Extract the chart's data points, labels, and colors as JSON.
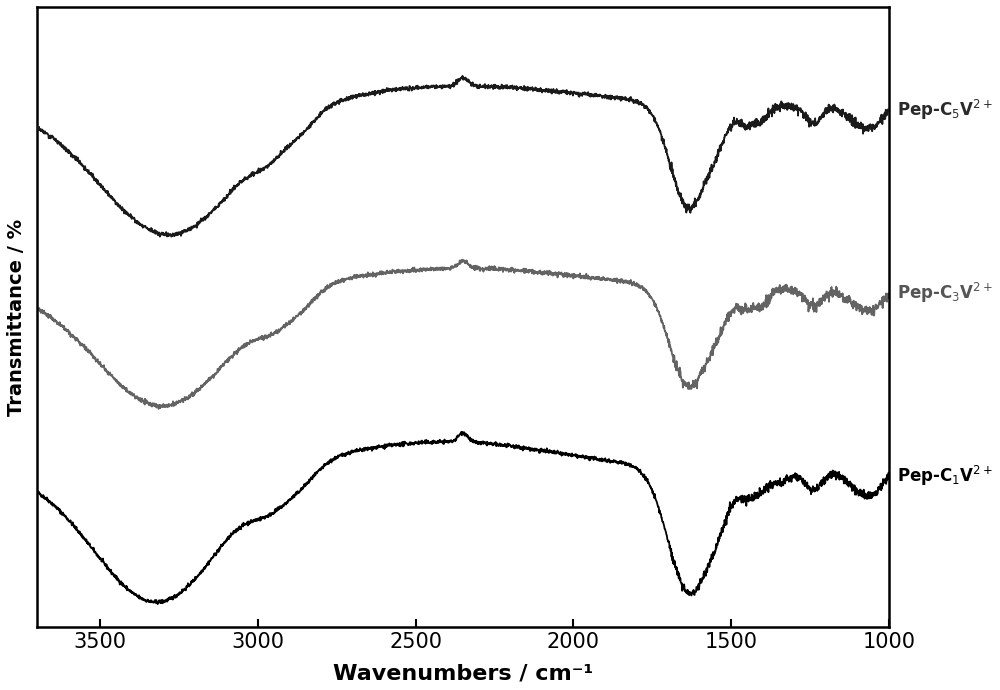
{
  "xlabel": "Wavenumbers / cm⁻¹",
  "ylabel": "Transmittance / %",
  "xmin": 1000,
  "xmax": 3700,
  "colors": {
    "pep_c5": "#1a1a1a",
    "pep_c3": "#636363",
    "pep_c1": "#000000"
  },
  "labels": {
    "pep_c5": "Pep-C$_5$V$^{2+}$",
    "pep_c3": "Pep-C$_3$V$^{2+}$",
    "pep_c1": "Pep-C$_1$V$^{2+}$"
  },
  "noise_seed": 42,
  "background_color": "#ffffff",
  "axis_linewidth": 1.8,
  "line_linewidth": 1.3
}
